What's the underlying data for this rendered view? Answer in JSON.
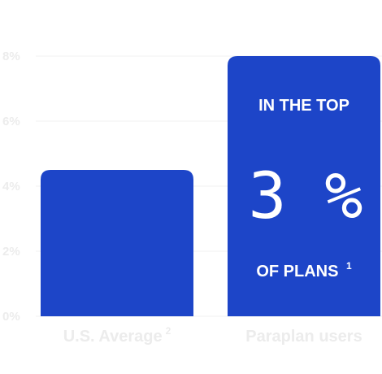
{
  "chart_data": {
    "type": "bar",
    "yticks": [
      "0%",
      "2%",
      "4%",
      "6%",
      "8%"
    ],
    "ylim": [
      0,
      8
    ],
    "grid": true,
    "categories": [
      {
        "label": "U.S. Average",
        "sup": "2"
      },
      {
        "label": "Paraplan users",
        "sup": ""
      }
    ],
    "values": [
      4.5,
      8
    ],
    "colors": {
      "bar": "#1d45c8",
      "grid": "#f0f0f0",
      "labels": "#ececec"
    },
    "callout": {
      "line1": "IN THE TOP",
      "big": "3 %",
      "line2": "OF PLANS",
      "line2_sup": "1"
    }
  }
}
